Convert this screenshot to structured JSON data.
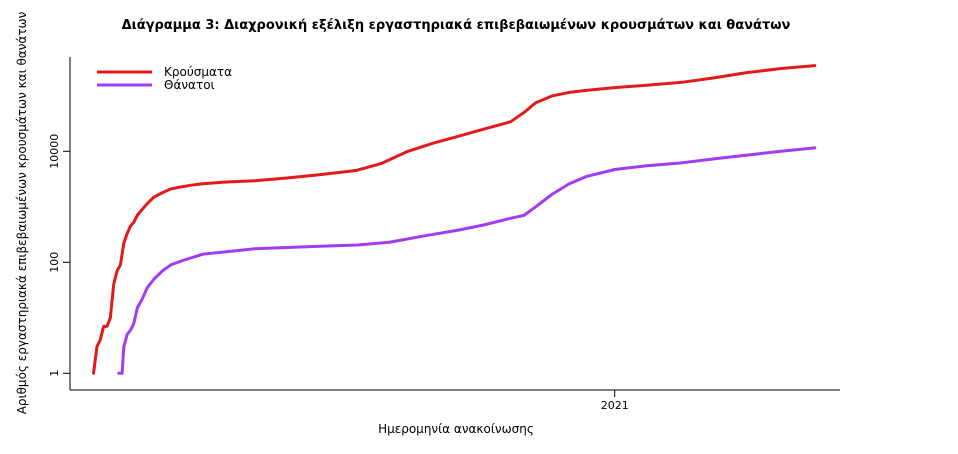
{
  "chart_data": {
    "type": "line",
    "title": "Διάγραμμα 3: Διαχρονική εξέλιξη εργαστηριακά επιβεβαιωμένων κρουσμάτων και θανάτων",
    "xlabel": "Ημερομηνία ανακοίνωσης",
    "ylabel": "Αριθμός εργαστηριακά επιβεβαιωμένων κρουσμάτων και θανάτων",
    "y_scale": "log",
    "ylim": [
      0.5,
      500000
    ],
    "yticks": [
      1,
      100,
      10000
    ],
    "ytick_labels": [
      "1",
      "100",
      "10000"
    ],
    "xlim": [
      "2020-02-12",
      "2021-05-15"
    ],
    "xticks": [
      "2021-01-01"
    ],
    "xtick_labels": [
      "2021"
    ],
    "grid": false,
    "legend_position": "top-left",
    "series": [
      {
        "name": "Κρούσματα",
        "color": "#e31a1c",
        "points": [
          [
            "2020-02-26",
            1
          ],
          [
            "2020-02-28",
            3
          ],
          [
            "2020-03-01",
            4
          ],
          [
            "2020-03-03",
            7
          ],
          [
            "2020-03-05",
            7
          ],
          [
            "2020-03-07",
            10
          ],
          [
            "2020-03-09",
            40
          ],
          [
            "2020-03-11",
            70
          ],
          [
            "2020-03-13",
            90
          ],
          [
            "2020-03-15",
            220
          ],
          [
            "2020-03-17",
            330
          ],
          [
            "2020-03-19",
            450
          ],
          [
            "2020-03-21",
            530
          ],
          [
            "2020-03-23",
            700
          ],
          [
            "2020-03-26",
            900
          ],
          [
            "2020-03-29",
            1150
          ],
          [
            "2020-04-02",
            1500
          ],
          [
            "2020-04-07",
            1800
          ],
          [
            "2020-04-12",
            2100
          ],
          [
            "2020-04-17",
            2250
          ],
          [
            "2020-04-24",
            2450
          ],
          [
            "2020-05-01",
            2600
          ],
          [
            "2020-05-15",
            2800
          ],
          [
            "2020-06-01",
            2950
          ],
          [
            "2020-06-20",
            3300
          ],
          [
            "2020-07-10",
            3800
          ],
          [
            "2020-07-31",
            4500
          ],
          [
            "2020-08-15",
            6000
          ],
          [
            "2020-08-31",
            10000
          ],
          [
            "2020-09-15",
            14000
          ],
          [
            "2020-10-01",
            19000
          ],
          [
            "2020-10-15",
            25000
          ],
          [
            "2020-10-31",
            34000
          ],
          [
            "2020-11-08",
            50000
          ],
          [
            "2020-11-15",
            75000
          ],
          [
            "2020-11-25",
            100000
          ],
          [
            "2020-12-05",
            115000
          ],
          [
            "2020-12-15",
            125000
          ],
          [
            "2021-01-01",
            140000
          ],
          [
            "2021-01-20",
            155000
          ],
          [
            "2021-02-10",
            175000
          ],
          [
            "2021-03-01",
            210000
          ],
          [
            "2021-03-20",
            260000
          ],
          [
            "2021-04-10",
            310000
          ],
          [
            "2021-04-30",
            350000
          ]
        ]
      },
      {
        "name": "Θάνατοι",
        "color": "#a23cf2",
        "points": [
          [
            "2020-03-12",
            1
          ],
          [
            "2020-03-14",
            1
          ],
          [
            "2020-03-15",
            3
          ],
          [
            "2020-03-17",
            5
          ],
          [
            "2020-03-19",
            6
          ],
          [
            "2020-03-21",
            8
          ],
          [
            "2020-03-23",
            15
          ],
          [
            "2020-03-26",
            22
          ],
          [
            "2020-03-29",
            35
          ],
          [
            "2020-04-02",
            50
          ],
          [
            "2020-04-07",
            70
          ],
          [
            "2020-04-12",
            90
          ],
          [
            "2020-04-20",
            110
          ],
          [
            "2020-05-01",
            140
          ],
          [
            "2020-05-15",
            155
          ],
          [
            "2020-06-01",
            175
          ],
          [
            "2020-06-20",
            185
          ],
          [
            "2020-07-10",
            195
          ],
          [
            "2020-08-01",
            205
          ],
          [
            "2020-08-20",
            230
          ],
          [
            "2020-09-10",
            300
          ],
          [
            "2020-09-30",
            380
          ],
          [
            "2020-10-15",
            470
          ],
          [
            "2020-10-31",
            620
          ],
          [
            "2020-11-08",
            700
          ],
          [
            "2020-11-15",
            1000
          ],
          [
            "2020-11-25",
            1700
          ],
          [
            "2020-12-05",
            2600
          ],
          [
            "2020-12-15",
            3500
          ],
          [
            "2021-01-01",
            4700
          ],
          [
            "2021-01-20",
            5500
          ],
          [
            "2021-02-10",
            6200
          ],
          [
            "2021-03-01",
            7300
          ],
          [
            "2021-03-20",
            8500
          ],
          [
            "2021-04-10",
            10000
          ],
          [
            "2021-04-30",
            11500
          ]
        ]
      }
    ]
  }
}
